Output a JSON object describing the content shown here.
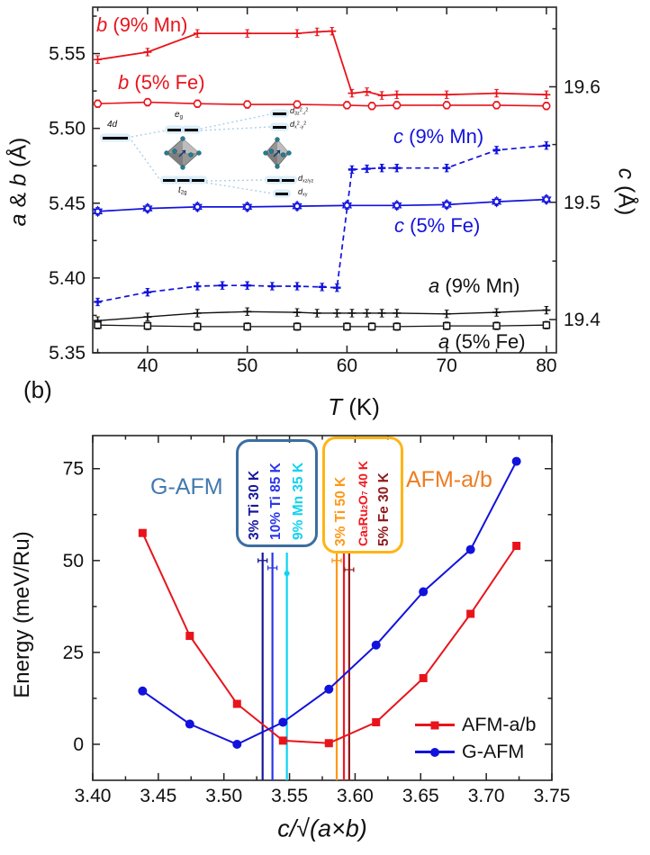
{
  "colors": {
    "red": "#e8141c",
    "blue": "#1212dd",
    "black": "#111111",
    "steel_blue": "#4379ad",
    "steel_blue_border": "#3c6e9f",
    "orange_border": "#ffb515",
    "orange_text": "#ee7d22",
    "navy": "#16169b",
    "royal": "#2a35e8",
    "cyan": "#10d2f0",
    "orange_line": "#ff9715",
    "red_line": "#f01820",
    "maroon": "#8e1a1a"
  },
  "panel_a": {
    "xlabel_parts": [
      {
        "t": "T",
        "i": 1
      },
      {
        "t": " (K)"
      }
    ],
    "ylabel_left_parts": [
      {
        "t": "a",
        "i": 1
      },
      {
        "t": " & "
      },
      {
        "t": "b",
        "i": 1
      },
      {
        "t": " (Å)"
      }
    ],
    "ylabel_right_parts": [
      {
        "t": "c",
        "i": 1
      },
      {
        "t": " (Å)"
      }
    ],
    "inset_labels": {
      "l4d": [
        {
          "t": "4d",
          "i": 1
        }
      ],
      "eg": [
        {
          "t": "e",
          "i": 1
        },
        {
          "t": "g",
          "sub": 1
        }
      ],
      "t2g": [
        {
          "t": "t",
          "i": 1
        },
        {
          "t": "2g",
          "sub": 1
        }
      ],
      "d3z": [
        {
          "t": "d",
          "i": 1
        },
        {
          "t": "3z",
          "sub": 1
        },
        {
          "t": "2",
          "sup": 1
        },
        {
          "t": "-r",
          "sub": 1
        },
        {
          "t": "2",
          "sup": 1
        }
      ],
      "dx2y2": [
        {
          "t": "d",
          "i": 1
        },
        {
          "t": "x",
          "sub": 1
        },
        {
          "t": "2",
          "sup": 1
        },
        {
          "t": "-y",
          "sub": 1
        },
        {
          "t": "2",
          "sup": 1
        }
      ],
      "dxzyz": [
        {
          "t": "d",
          "i": 1
        },
        {
          "t": "xz/yz",
          "sub": 1
        }
      ],
      "dxy": [
        {
          "t": "d",
          "i": 1
        },
        {
          "t": "xy",
          "sub": 1
        }
      ]
    }
  },
  "panel_b": {
    "panel_tag": "(b)",
    "xlabel_parts": [
      {
        "t": "c/√(a×b)",
        "i": 1
      }
    ],
    "ylabel": "Energy (meV/Ru)",
    "group_left_title": "G-AFM",
    "group_right_title": "AFM-a/b",
    "groups": [
      {
        "title": "G-AFM",
        "border": "#3c6e9f",
        "items": [
          {
            "parts": [
              {
                "t": "3% Ti 30 K"
              }
            ],
            "color": "#16169b"
          },
          {
            "parts": [
              {
                "t": "10% Ti 85 K"
              }
            ],
            "color": "#2a35e8"
          },
          {
            "parts": [
              {
                "t": "9% Mn 35 K"
              }
            ],
            "color": "#10d2f0"
          }
        ]
      },
      {
        "title": "AFM-a/b",
        "border": "#ffb515",
        "items": [
          {
            "parts": [
              {
                "t": "3% Ti 50 K"
              }
            ],
            "color": "#ff9715"
          },
          {
            "parts": [
              {
                "t": "Ca"
              },
              {
                "t": "3",
                "sub": 1
              },
              {
                "t": "Ru"
              },
              {
                "t": "2",
                "sub": 1
              },
              {
                "t": "O"
              },
              {
                "t": "7",
                "sub": 1
              },
              {
                "t": " 40 K"
              }
            ],
            "color": "#f01820"
          },
          {
            "parts": [
              {
                "t": "5% Fe 30 K"
              }
            ],
            "color": "#8e1a1a"
          }
        ]
      }
    ],
    "legend": [
      {
        "label": "AFM-a/b",
        "color": "#e8141c",
        "marker": "square"
      },
      {
        "label": "G-AFM",
        "color": "#1212dd",
        "marker": "circle"
      }
    ]
  },
  "chart_data": [
    {
      "type": "line",
      "title": "",
      "xlabel": "T (K)",
      "ylabel_left": "a & b (Å)",
      "ylabel_right": "c (Å)",
      "xlim": [
        34.5,
        81
      ],
      "ylim_left": [
        5.35,
        5.581
      ],
      "x_ticks": [
        {
          "v": 40,
          "label": "40"
        },
        {
          "v": 50,
          "label": "50"
        },
        {
          "v": 60,
          "label": "60"
        },
        {
          "v": 70,
          "label": "70"
        },
        {
          "v": 80,
          "label": "80"
        }
      ],
      "x_minor": [
        35,
        45,
        55,
        65,
        75
      ],
      "y_ticks_left": [
        {
          "v": 5.35,
          "label": "5.35"
        },
        {
          "v": 5.4,
          "label": "5.40"
        },
        {
          "v": 5.45,
          "label": "5.45"
        },
        {
          "v": 5.5,
          "label": "5.50"
        },
        {
          "v": 5.55,
          "label": "5.55"
        }
      ],
      "y_minor_left": [
        5.375,
        5.425,
        5.475,
        5.525,
        5.575
      ],
      "right_ticks": [
        {
          "label": "19.4",
          "at": 5.3722
        },
        {
          "label": "19.5",
          "at": 5.4506
        },
        {
          "label": "19.6",
          "at": 5.5278
        }
      ],
      "right_minor_at": [
        5.4113,
        5.4892,
        5.5666
      ],
      "series": [
        {
          "id": "b-9mn",
          "name": "b (9% Mn)",
          "label_parts": [
            {
              "t": "b",
              "i": 1
            },
            {
              "t": " (9% Mn)"
            }
          ],
          "color": "#e8141c",
          "dash": null,
          "width": 1.8,
          "marker": "plus",
          "data": [
            [
              35,
              5.546
            ],
            [
              40,
              5.551
            ],
            [
              45,
              5.5635
            ],
            [
              50,
              5.5635
            ],
            [
              55,
              5.5635
            ],
            [
              57,
              5.5645
            ],
            [
              58.5,
              5.565
            ],
            [
              60.5,
              5.5235
            ],
            [
              62,
              5.5245
            ],
            [
              63.5,
              5.522
            ],
            [
              65,
              5.5225
            ],
            [
              70,
              5.5225
            ],
            [
              75,
              5.5235
            ],
            [
              80,
              5.5225
            ]
          ]
        },
        {
          "id": "b-5fe",
          "name": "b (5% Fe)",
          "label_parts": [
            {
              "t": "b",
              "i": 1
            },
            {
              "t": " (5% Fe)"
            }
          ],
          "color": "#e8141c",
          "dash": null,
          "width": 1.6,
          "marker": "ocircle",
          "data": [
            [
              35,
              5.5165
            ],
            [
              40,
              5.5175
            ],
            [
              45,
              5.5165
            ],
            [
              50,
              5.516
            ],
            [
              55,
              5.516
            ],
            [
              60,
              5.5155
            ],
            [
              62.5,
              5.515
            ],
            [
              65,
              5.5155
            ],
            [
              70,
              5.5155
            ],
            [
              75,
              5.5155
            ],
            [
              80,
              5.515
            ]
          ]
        },
        {
          "id": "c-9mn",
          "name": "c (9% Mn)",
          "label_parts": [
            {
              "t": "c",
              "i": 1
            },
            {
              "t": " (9% Mn)"
            }
          ],
          "color": "#1212dd",
          "dash": "6,4",
          "width": 1.7,
          "marker": "bplus",
          "data": [
            [
              35,
              5.384
            ],
            [
              40,
              5.3905
            ],
            [
              45,
              5.3945
            ],
            [
              47.5,
              5.395
            ],
            [
              50,
              5.395
            ],
            [
              52.5,
              5.3945
            ],
            [
              55,
              5.3945
            ],
            [
              57.5,
              5.394
            ],
            [
              59,
              5.3935
            ],
            [
              60.5,
              5.4725
            ],
            [
              62,
              5.473
            ],
            [
              63.5,
              5.4735
            ],
            [
              65,
              5.4735
            ],
            [
              70,
              5.4735
            ],
            [
              75,
              5.4855
            ],
            [
              80,
              5.4885
            ]
          ]
        },
        {
          "id": "c-5fe",
          "name": "c (5% Fe)",
          "label_parts": [
            {
              "t": "c",
              "i": 1
            },
            {
              "t": " (5% Fe)"
            }
          ],
          "color": "#1212dd",
          "dash": null,
          "width": 1.7,
          "marker": "star6",
          "data": [
            [
              35,
              5.4445
            ],
            [
              40,
              5.4465
            ],
            [
              45,
              5.4475
            ],
            [
              50,
              5.4475
            ],
            [
              55,
              5.448
            ],
            [
              60,
              5.4485
            ],
            [
              65,
              5.4485
            ],
            [
              70,
              5.449
            ],
            [
              75,
              5.451
            ],
            [
              80,
              5.4525
            ]
          ]
        },
        {
          "id": "a-9mn",
          "name": "a (9% Mn)",
          "label_parts": [
            {
              "t": "a",
              "i": 1
            },
            {
              "t": " (9% Mn)"
            }
          ],
          "color": "#111111",
          "dash": null,
          "width": 1.4,
          "marker": "plus",
          "data": [
            [
              35,
              5.3715
            ],
            [
              40,
              5.374
            ],
            [
              45,
              5.3765
            ],
            [
              50,
              5.3775
            ],
            [
              55,
              5.377
            ],
            [
              57,
              5.3765
            ],
            [
              59,
              5.3765
            ],
            [
              60.5,
              5.3765
            ],
            [
              62,
              5.3765
            ],
            [
              63.5,
              5.3765
            ],
            [
              65,
              5.3765
            ],
            [
              70,
              5.376
            ],
            [
              75,
              5.377
            ],
            [
              80,
              5.3785
            ]
          ]
        },
        {
          "id": "a-5fe",
          "name": "a (5% Fe)",
          "label_parts": [
            {
              "t": "a",
              "i": 1
            },
            {
              "t": " (5% Fe)"
            }
          ],
          "color": "#111111",
          "dash": null,
          "width": 1.3,
          "marker": "osquare",
          "data": [
            [
              35,
              5.3685
            ],
            [
              40,
              5.368
            ],
            [
              45,
              5.3675
            ],
            [
              50,
              5.3675
            ],
            [
              55,
              5.3675
            ],
            [
              60,
              5.3675
            ],
            [
              62.5,
              5.3675
            ],
            [
              65,
              5.3675
            ],
            [
              70,
              5.368
            ],
            [
              75,
              5.368
            ],
            [
              80,
              5.3685
            ]
          ]
        }
      ]
    },
    {
      "type": "line",
      "title": "",
      "xlabel": "c/√(a×b)",
      "ylabel": "Energy (meV/Ru)",
      "xlim": [
        3.4,
        3.75
      ],
      "ylim": [
        -9.8,
        84
      ],
      "legend_position": "lower right",
      "x_ticks": [
        {
          "v": 3.4,
          "label": "3.40"
        },
        {
          "v": 3.45,
          "label": "3.45"
        },
        {
          "v": 3.5,
          "label": "3.50"
        },
        {
          "v": 3.55,
          "label": "3.55"
        },
        {
          "v": 3.6,
          "label": "3.60"
        },
        {
          "v": 3.65,
          "label": "3.65"
        },
        {
          "v": 3.7,
          "label": "3.70"
        },
        {
          "v": 3.75,
          "label": "3.75"
        }
      ],
      "x_minor": [
        3.425,
        3.475,
        3.525,
        3.575,
        3.625,
        3.675,
        3.725
      ],
      "y_ticks": [
        {
          "v": 0,
          "label": "0"
        },
        {
          "v": 25,
          "label": "25"
        },
        {
          "v": 50,
          "label": "50"
        },
        {
          "v": 75,
          "label": "75"
        }
      ],
      "y_minor": [
        12.5,
        37.5,
        62.5
      ],
      "series": [
        {
          "id": "afm-ab",
          "name": "AFM-a/b",
          "color": "#e8141c",
          "dash": null,
          "width": 2,
          "marker": "fsquare",
          "data": [
            [
              3.438,
              57.5
            ],
            [
              3.474,
              29.5
            ],
            [
              3.51,
              11
            ],
            [
              3.545,
              1
            ],
            [
              3.58,
              0.3
            ],
            [
              3.616,
              6
            ],
            [
              3.652,
              18
            ],
            [
              3.688,
              35.5
            ],
            [
              3.723,
              54
            ]
          ]
        },
        {
          "id": "g-afm",
          "name": "G-AFM",
          "color": "#1212dd",
          "dash": null,
          "width": 2,
          "marker": "fcircle",
          "data": [
            [
              3.438,
              14.5
            ],
            [
              3.474,
              5.5
            ],
            [
              3.51,
              0
            ],
            [
              3.545,
              6
            ],
            [
              3.58,
              15
            ],
            [
              3.616,
              27
            ],
            [
              3.652,
              41.5
            ],
            [
              3.688,
              53
            ],
            [
              3.723,
              77
            ]
          ]
        }
      ],
      "vlines": [
        {
          "label": "3% Ti 30 K",
          "x": 3.5295,
          "color": "#16169b",
          "cap": "bar",
          "cap_y": 50
        },
        {
          "label": "10% Ti 85 K",
          "x": 3.537,
          "color": "#2a35e8",
          "cap": "bar",
          "cap_y": 48
        },
        {
          "label": "9% Mn 35 K",
          "x": 3.548,
          "color": "#10d2f0",
          "cap": "dot",
          "cap_y": 46.5
        },
        {
          "label": "3% Ti 50 K",
          "x": 3.586,
          "color": "#ff9715",
          "cap": "bar",
          "cap_y": 50
        },
        {
          "label": "Ca3Ru2O7 40 K",
          "x": 3.5915,
          "color": "#f01820",
          "cap": null,
          "cap_y": null
        },
        {
          "label": "5% Fe 30 K",
          "x": 3.5955,
          "color": "#8e1a1a",
          "cap": "bar",
          "cap_y": 47.5
        }
      ]
    }
  ]
}
